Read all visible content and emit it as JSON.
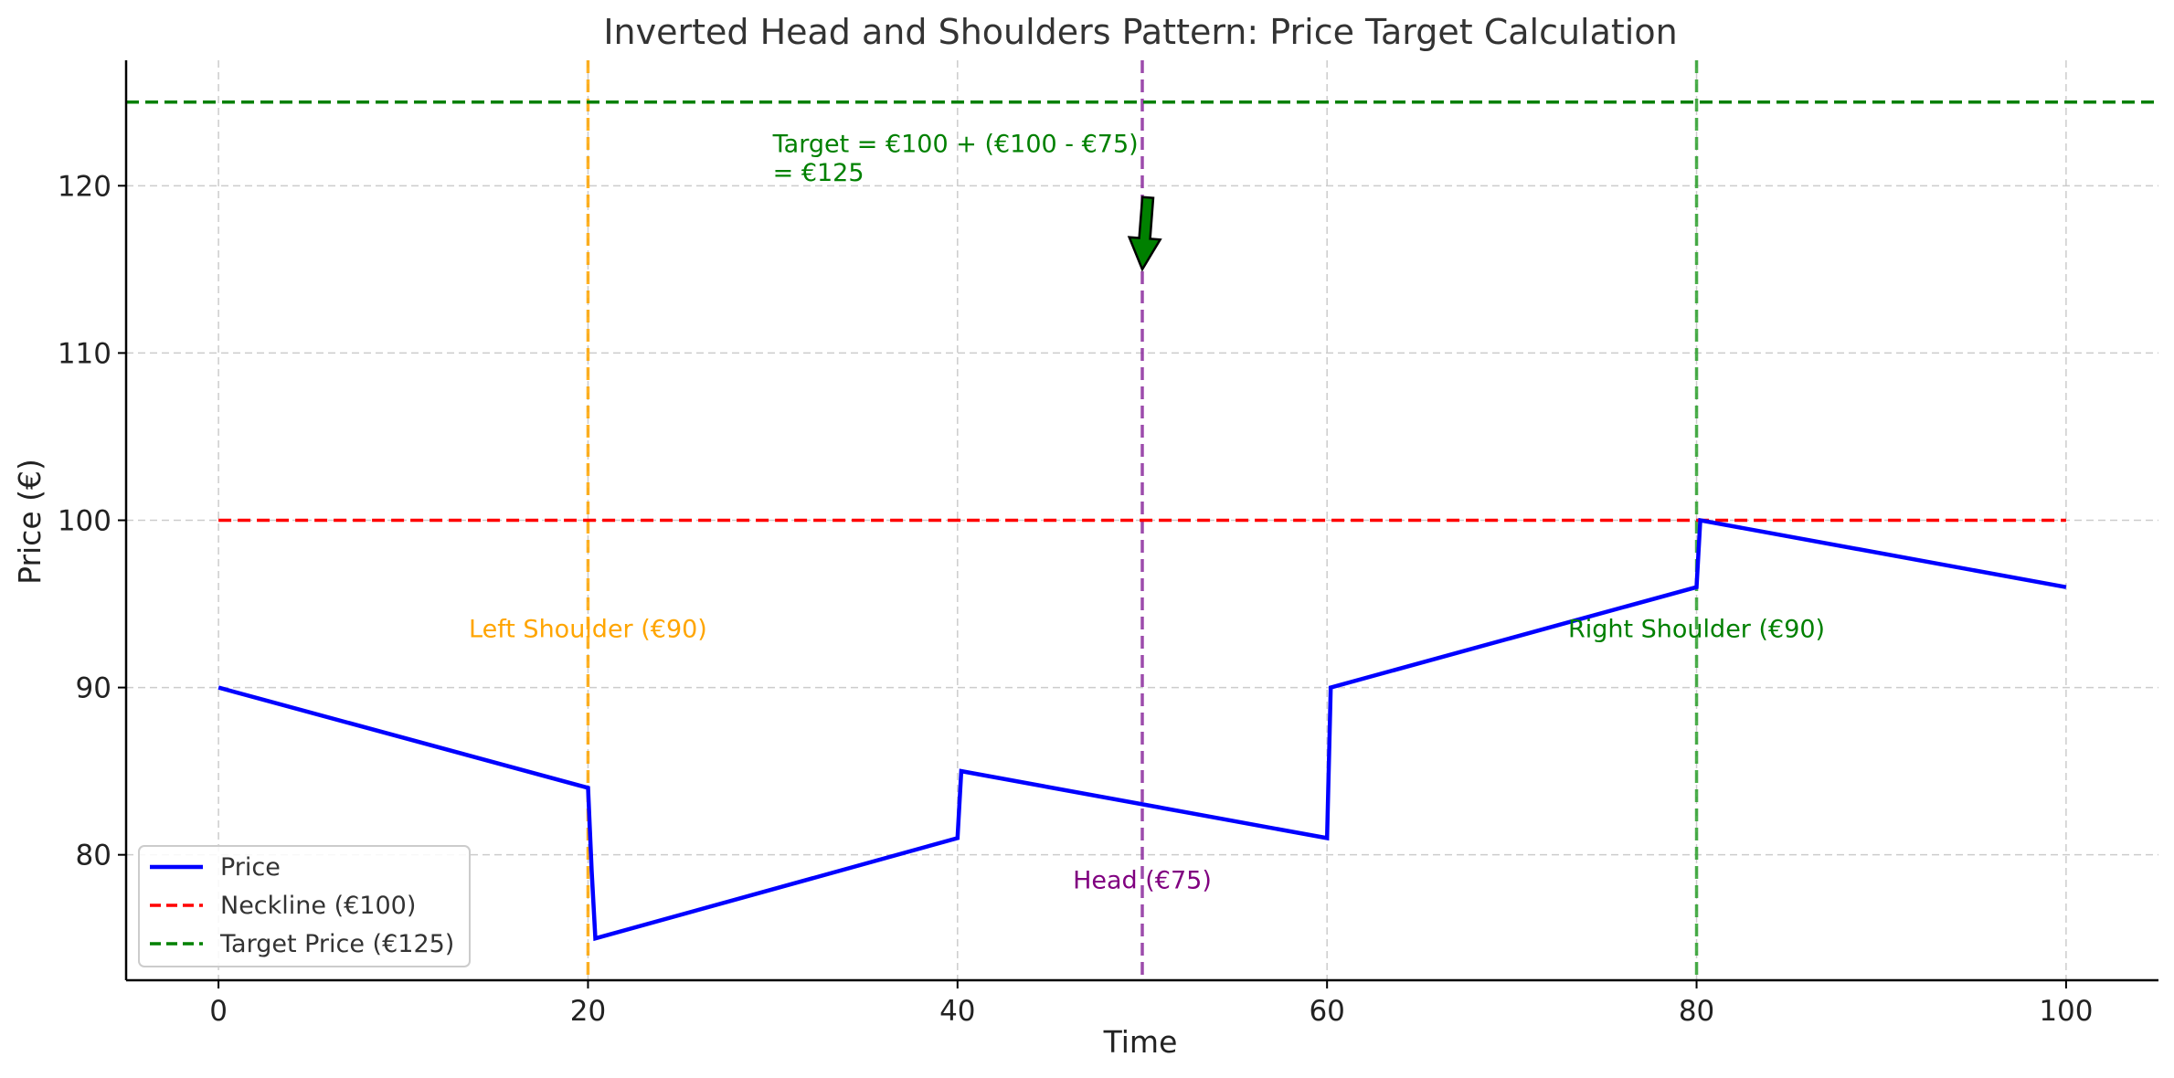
{
  "chart_data": {
    "type": "line",
    "title": "Inverted Head and Shoulders Pattern: Price Target Calculation",
    "xlabel": "Time",
    "ylabel": "Price (€)",
    "xlim": [
      -5,
      105
    ],
    "ylim": [
      72.5,
      127.5
    ],
    "xticks": [
      0,
      20,
      40,
      60,
      80,
      100
    ],
    "yticks": [
      80,
      90,
      100,
      110,
      120
    ],
    "grid": true,
    "legend_position": "lower-left",
    "series": [
      {
        "name": "Price",
        "color": "#0000ff",
        "x": [
          0,
          20,
          20.2,
          20.4,
          40,
          40.2,
          60,
          60.2,
          80,
          80.2,
          100
        ],
        "y": [
          90,
          84,
          79,
          75,
          81,
          85,
          81,
          90,
          96,
          100,
          96
        ]
      }
    ],
    "hlines": [
      {
        "name": "Neckline (€100)",
        "y": 100,
        "color": "#ff0000",
        "x_range": [
          0,
          100
        ]
      },
      {
        "name": "Target Price (€125)",
        "y": 125,
        "color": "#008000",
        "x_range": [
          -5,
          105
        ]
      }
    ],
    "vlines": [
      {
        "x": 20,
        "color": "#ffa500"
      },
      {
        "x": 50,
        "color": "#8b2c9e"
      },
      {
        "x": 80,
        "color": "#2ca02c"
      }
    ],
    "annotations": [
      {
        "text": "Left Shoulder (€90)",
        "x": 20,
        "y": 93,
        "color": "#ffa500",
        "align": "middle"
      },
      {
        "text": "Head (€75)",
        "x": 50,
        "y": 78,
        "color": "#800080",
        "align": "middle"
      },
      {
        "text": "Right Shoulder (€90)",
        "x": 80,
        "y": 93,
        "color": "#008000",
        "align": "middle"
      },
      {
        "text": "Target = €100 + (€100 - €75)",
        "x": 30,
        "y": 122,
        "color": "#008000",
        "align": "start"
      },
      {
        "text": "= €125",
        "x": 30,
        "y": 120.3,
        "color": "#008000",
        "align": "start"
      }
    ],
    "arrow": {
      "from": [
        50.3,
        119.3
      ],
      "to": [
        50,
        115
      ],
      "color": "#008000"
    },
    "legend": [
      {
        "label": "Price",
        "color": "#0000ff",
        "dashed": false
      },
      {
        "label": "Neckline (€100)",
        "color": "#ff0000",
        "dashed": true
      },
      {
        "label": "Target Price (€125)",
        "color": "#008000",
        "dashed": true
      }
    ]
  }
}
